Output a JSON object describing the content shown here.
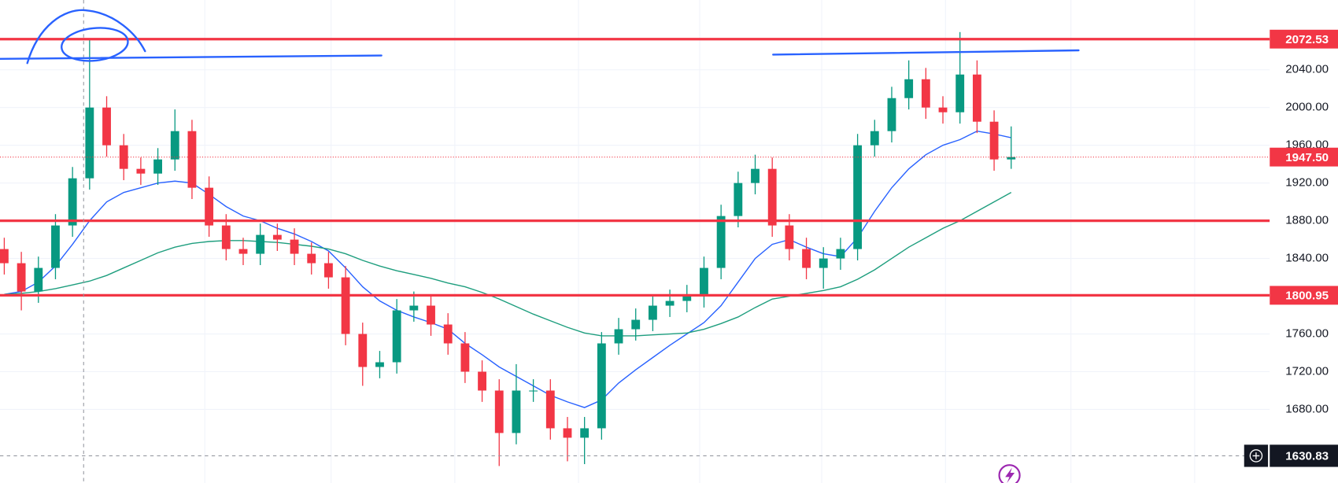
{
  "chart_data": {
    "type": "candlestick",
    "open": [
      1850,
      1835,
      1805,
      1830,
      1875,
      1925,
      2000,
      1960,
      1935,
      1930,
      1945,
      1975,
      1915,
      1875,
      1850,
      1845,
      1865,
      1860,
      1845,
      1835,
      1820,
      1760,
      1725,
      1730,
      1785,
      1790,
      1770,
      1750,
      1720,
      1700,
      1655,
      1700,
      1700,
      1660,
      1650,
      1660,
      1750,
      1765,
      1775,
      1790,
      1795,
      1800,
      1830,
      1885,
      1920,
      1935,
      1875,
      1850,
      1830,
      1840,
      1850,
      1960,
      1975,
      2010,
      2030,
      2000,
      1995,
      2035,
      1985,
      1945
    ],
    "high": [
      1862,
      1847,
      1842,
      1887,
      1937,
      2073,
      2012,
      1972,
      1947,
      1957,
      1998,
      1987,
      1927,
      1887,
      1862,
      1877,
      1877,
      1872,
      1857,
      1847,
      1832,
      1772,
      1742,
      1797,
      1805,
      1802,
      1782,
      1762,
      1732,
      1712,
      1728,
      1712,
      1712,
      1672,
      1672,
      1762,
      1777,
      1787,
      1802,
      1807,
      1812,
      1842,
      1897,
      1932,
      1950,
      1947,
      1887,
      1862,
      1852,
      1862,
      1972,
      1987,
      2022,
      2050,
      2042,
      2012,
      2080,
      2050,
      1997,
      1980
    ],
    "low": [
      1823,
      1785,
      1793,
      1818,
      1863,
      1913,
      1948,
      1923,
      1918,
      1918,
      1933,
      1903,
      1863,
      1838,
      1833,
      1833,
      1848,
      1833,
      1823,
      1808,
      1748,
      1705,
      1713,
      1718,
      1773,
      1758,
      1738,
      1708,
      1688,
      1620,
      1643,
      1688,
      1648,
      1625,
      1622,
      1648,
      1738,
      1753,
      1763,
      1778,
      1783,
      1788,
      1818,
      1873,
      1908,
      1863,
      1838,
      1818,
      1808,
      1828,
      1838,
      1948,
      1963,
      1998,
      1988,
      1983,
      1983,
      1973,
      1933,
      1935
    ],
    "close": [
      1835,
      1805,
      1830,
      1875,
      1925,
      2000,
      1960,
      1935,
      1930,
      1945,
      1975,
      1915,
      1875,
      1850,
      1845,
      1865,
      1860,
      1845,
      1835,
      1820,
      1760,
      1725,
      1730,
      1785,
      1790,
      1770,
      1750,
      1720,
      1700,
      1655,
      1700,
      1700,
      1660,
      1650,
      1660,
      1750,
      1765,
      1775,
      1790,
      1795,
      1800,
      1830,
      1885,
      1920,
      1935,
      1875,
      1850,
      1830,
      1840,
      1850,
      1960,
      1975,
      2010,
      2030,
      2000,
      1995,
      2035,
      1985,
      1945,
      1947.5
    ],
    "up_color": "#089981",
    "down_color": "#f23645",
    "series": [
      {
        "color": "#2962ff",
        "values": [
          1802,
          1805,
          1815,
          1832,
          1855,
          1880,
          1900,
          1910,
          1915,
          1920,
          1922,
          1920,
          1908,
          1895,
          1885,
          1880,
          1872,
          1866,
          1858,
          1848,
          1830,
          1810,
          1795,
          1785,
          1778,
          1772,
          1765,
          1750,
          1738,
          1725,
          1715,
          1705,
          1695,
          1688,
          1682,
          1690,
          1708,
          1722,
          1735,
          1748,
          1760,
          1772,
          1790,
          1815,
          1840,
          1855,
          1860,
          1852,
          1845,
          1842,
          1862,
          1890,
          1915,
          1935,
          1950,
          1960,
          1966,
          1975,
          1972,
          1968
        ]
      },
      {
        "color": "#1e9e7e",
        "values": [
          1802,
          1803,
          1805,
          1808,
          1812,
          1816,
          1822,
          1830,
          1838,
          1846,
          1852,
          1856,
          1858,
          1859,
          1859,
          1858,
          1857,
          1855,
          1853,
          1850,
          1845,
          1838,
          1832,
          1827,
          1823,
          1819,
          1814,
          1810,
          1804,
          1797,
          1789,
          1781,
          1774,
          1767,
          1761,
          1758,
          1758,
          1758,
          1759,
          1760,
          1761,
          1765,
          1771,
          1778,
          1788,
          1797,
          1800,
          1803,
          1806,
          1810,
          1818,
          1828,
          1840,
          1852,
          1862,
          1872,
          1880,
          1890,
          1900,
          1910
        ]
      }
    ],
    "ylim": [
      1602,
      2114
    ],
    "yticks": [
      {
        "value": 2040,
        "label": "2040.00"
      },
      {
        "value": 2000,
        "label": "2000.00"
      },
      {
        "value": 1960,
        "label": "1960.00"
      },
      {
        "value": 1920,
        "label": "1920.00"
      },
      {
        "value": 1880,
        "label": "1880.00"
      },
      {
        "value": 1840,
        "label": "1840.00"
      },
      {
        "value": 1760,
        "label": "1760.00"
      },
      {
        "value": 1720,
        "label": "1720.00"
      },
      {
        "value": 1680,
        "label": "1680.00"
      }
    ],
    "grid": true,
    "level_color": "#f23645",
    "levels": [
      {
        "value": 2072.53,
        "label": "2072.53"
      },
      {
        "value": 1880
      },
      {
        "value": 1800.95,
        "label": "1800.95"
      }
    ],
    "last_price": {
      "value": 1947.5,
      "label": "1947.50"
    },
    "crosshair_price": {
      "value": 1630.83,
      "label": "1630.83"
    }
  }
}
